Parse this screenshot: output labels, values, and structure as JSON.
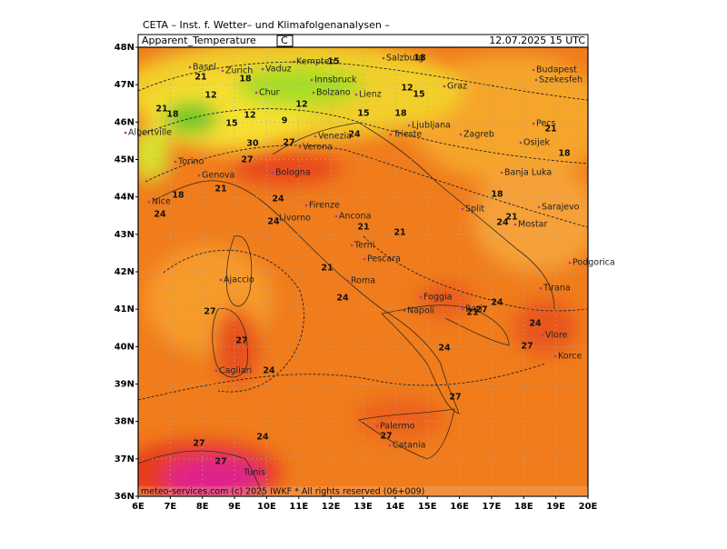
{
  "header": {
    "institute": "CETA – Inst. f. Wetter– und Klimafolgenanalysen –",
    "variable": "Apparent_Temperature",
    "unit": "C",
    "datetime": "12.07.2025 15 UTC"
  },
  "axes": {
    "lat_labels": [
      "48N",
      "47N",
      "46N",
      "45N",
      "44N",
      "43N",
      "42N",
      "41N",
      "40N",
      "39N",
      "38N",
      "37N",
      "36N"
    ],
    "lon_labels": [
      "6E",
      "7E",
      "8E",
      "9E",
      "10E",
      "11E",
      "12E",
      "13E",
      "14E",
      "15E",
      "16E",
      "17E",
      "18E",
      "19E",
      "20E"
    ]
  },
  "cities": [
    "Basel",
    "Zurich",
    "Vaduz",
    "Kempten",
    "Salzburg",
    "Budapest",
    "Szekesfeh",
    "Innsbruck",
    "Graz",
    "Bolzano",
    "Lienz",
    "Chur",
    "Albertville",
    "Torino",
    "Genova",
    "Verona",
    "Venezia",
    "Bologna",
    "Ljubljana",
    "Zagreb",
    "Trieste",
    "Pecs",
    "Osijek",
    "Banja Luka",
    "Sarajevo",
    "Split",
    "Mostar",
    "Podgorica",
    "Nice",
    "Livorno",
    "Firenze",
    "Ancona",
    "Terni",
    "Pescara",
    "Roma",
    "Foggia",
    "Napoli",
    "Bari",
    "Tirana",
    "Vlore",
    "Korce",
    "Ajaccio",
    "Cagliari",
    "Palermo",
    "Catania",
    "Tunis"
  ],
  "contour_labels": [
    18,
    15,
    18,
    21,
    12,
    18,
    21,
    15,
    12,
    9,
    12,
    15,
    12,
    15,
    18,
    24,
    27,
    30,
    27,
    21,
    24,
    18,
    24,
    24,
    21,
    21,
    21,
    24,
    18,
    21,
    24,
    21,
    27,
    24,
    24,
    27,
    27,
    27,
    24,
    24,
    27,
    27,
    24,
    27,
    27,
    18,
    21
  ],
  "footer": "meteo-services.com (c) 2025 IWKF * All rights reserved (06+009)"
}
